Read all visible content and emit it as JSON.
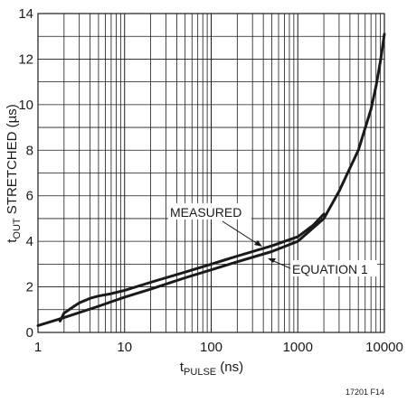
{
  "chart_data": {
    "type": "line",
    "x_scale": "log",
    "xlim": [
      1,
      10000
    ],
    "ylim": [
      0,
      14
    ],
    "x_ticks": [
      "1",
      "10",
      "100",
      "1000",
      "10000"
    ],
    "y_ticks": [
      "0",
      "2",
      "4",
      "6",
      "8",
      "10",
      "12",
      "14"
    ],
    "xlabel": {
      "main": "t",
      "sub": "PULSE",
      "unit": " (ns)"
    },
    "ylabel": {
      "main": "t",
      "sub": "OUT",
      "rest": " STRETCHED (µs)"
    },
    "grid": true,
    "series": [
      {
        "name": "MEASURED",
        "x": [
          1.8,
          2,
          2.5,
          3,
          4,
          5,
          7,
          10,
          20,
          50,
          100,
          200,
          500,
          1000,
          1500,
          2000
        ],
        "y": [
          0.5,
          0.85,
          1.1,
          1.3,
          1.5,
          1.6,
          1.7,
          1.85,
          2.2,
          2.65,
          3.0,
          3.35,
          3.8,
          4.2,
          4.7,
          5.2
        ]
      },
      {
        "name": "EQUATION 1",
        "x": [
          1,
          2,
          5,
          10,
          20,
          50,
          100,
          200,
          500,
          1000,
          2000,
          3000,
          5000,
          7000,
          8000,
          9000,
          10000
        ],
        "y": [
          0.3,
          0.65,
          1.15,
          1.55,
          1.9,
          2.4,
          2.75,
          3.1,
          3.55,
          4.0,
          5.0,
          6.2,
          8.0,
          9.8,
          10.8,
          11.9,
          13.1
        ]
      }
    ],
    "annotations": [
      "MEASURED",
      "EQUATION 1"
    ]
  },
  "figure_id": "17201 F14"
}
